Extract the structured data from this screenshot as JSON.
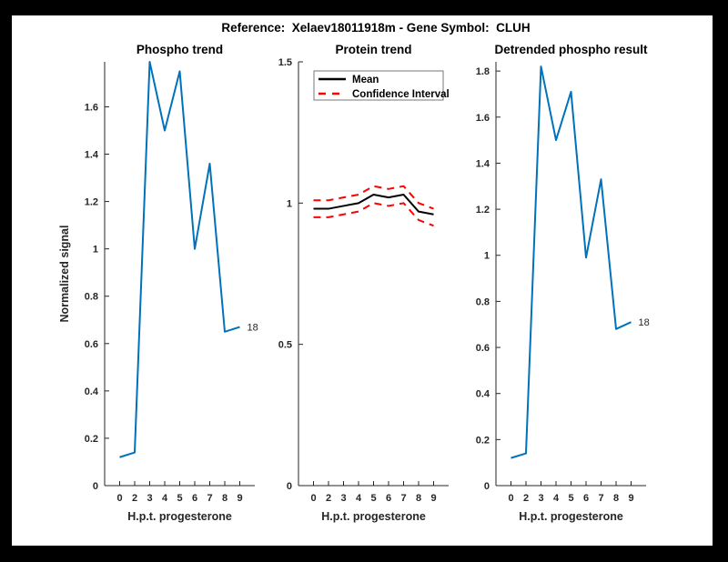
{
  "figure": {
    "title": "Reference:  Xelaev18011918m - Gene Symbol:  CLUH",
    "background": "#ffffff",
    "frame_color": "#000000",
    "text_color": "#262626",
    "accent_blue": "#0072BD",
    "accent_red": "#FF0000"
  },
  "chart_data": [
    {
      "id": "phospho-trend",
      "type": "line",
      "title": "Phospho trend",
      "xlabel": "H.p.t. progesterone",
      "ylabel": "Normalized signal",
      "categories": [
        "0",
        "2",
        "3",
        "4",
        "5",
        "6",
        "7",
        "8",
        "9"
      ],
      "ylim": [
        0,
        1.79
      ],
      "yticks": [
        0,
        0.2,
        0.4,
        0.6,
        0.8,
        1,
        1.2,
        1.4,
        1.6
      ],
      "grid": false,
      "series": [
        {
          "name": "Phospho signal",
          "color": "#0072BD",
          "dash": null,
          "width": 2,
          "in_legend": false,
          "values": [
            0.12,
            0.14,
            1.79,
            1.5,
            1.75,
            1.0,
            1.36,
            0.65,
            0.67
          ]
        }
      ],
      "legend": null,
      "annotation": {
        "text": "18",
        "series": 0,
        "point": "last"
      }
    },
    {
      "id": "protein-trend",
      "type": "line",
      "title": "Protein trend",
      "xlabel": "H.p.t. progesterone",
      "ylabel": null,
      "categories": [
        "0",
        "2",
        "3",
        "4",
        "5",
        "6",
        "7",
        "8",
        "9"
      ],
      "ylim": [
        0,
        1.5
      ],
      "yticks": [
        0,
        0.5,
        1,
        1.5
      ],
      "grid": false,
      "series": [
        {
          "name": "Mean",
          "color": "#000000",
          "dash": null,
          "width": 2,
          "in_legend": true,
          "values": [
            0.98,
            0.98,
            0.99,
            1.0,
            1.03,
            1.02,
            1.03,
            0.97,
            0.96
          ]
        },
        {
          "name": "Confidence Interval",
          "color": "#FF0000",
          "dash": "8 6",
          "width": 2,
          "in_legend": true,
          "values": [
            1.01,
            1.01,
            1.02,
            1.03,
            1.06,
            1.05,
            1.06,
            1.0,
            0.98
          ]
        },
        {
          "name": "Confidence Interval lower",
          "color": "#FF0000",
          "dash": "8 6",
          "width": 2,
          "in_legend": false,
          "values": [
            0.95,
            0.95,
            0.96,
            0.97,
            1.0,
            0.99,
            1.0,
            0.94,
            0.92
          ]
        }
      ],
      "legend": {
        "position": "northwest"
      },
      "annotation": null
    },
    {
      "id": "detrended-phospho-result",
      "type": "line",
      "title": "Detrended phospho result",
      "xlabel": "H.p.t. progesterone",
      "ylabel": null,
      "categories": [
        "0",
        "2",
        "3",
        "4",
        "5",
        "6",
        "7",
        "8",
        "9"
      ],
      "ylim": [
        0,
        1.84
      ],
      "yticks": [
        0,
        0.2,
        0.4,
        0.6,
        0.8,
        1,
        1.2,
        1.4,
        1.6,
        1.8
      ],
      "grid": false,
      "series": [
        {
          "name": "Detrended phospho signal",
          "color": "#0072BD",
          "dash": null,
          "width": 2,
          "in_legend": false,
          "values": [
            0.12,
            0.14,
            1.82,
            1.5,
            1.71,
            0.99,
            1.33,
            0.68,
            0.71
          ]
        }
      ],
      "legend": null,
      "annotation": {
        "text": "18",
        "series": 0,
        "point": "last"
      }
    }
  ]
}
